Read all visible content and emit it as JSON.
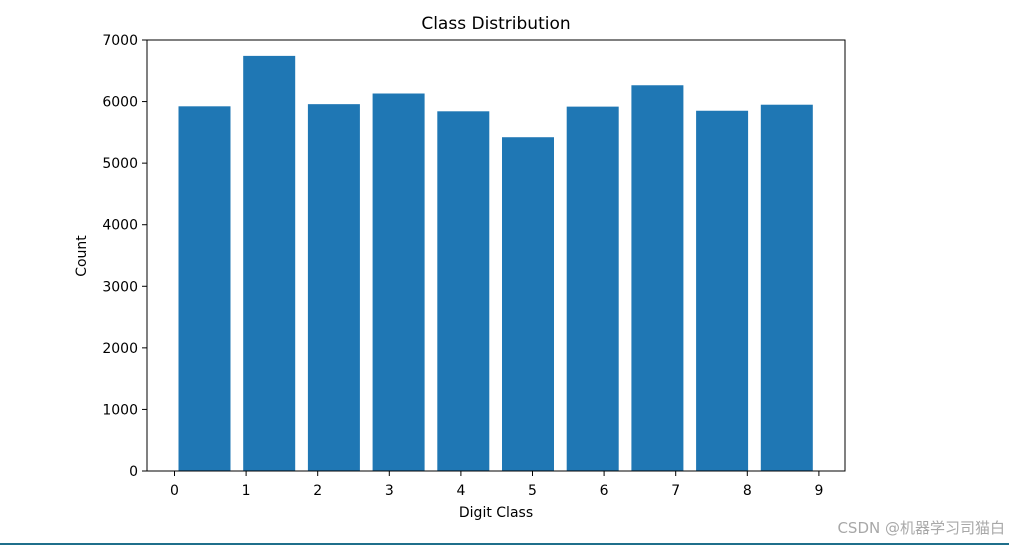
{
  "chart_data": {
    "type": "bar",
    "title": "Class Distribution",
    "xlabel": "Digit Class",
    "ylabel": "Count",
    "categories": [
      "0",
      "1",
      "2",
      "3",
      "4",
      "5",
      "6",
      "7",
      "8",
      "9"
    ],
    "values": [
      5923,
      6742,
      5958,
      6131,
      5842,
      5421,
      5918,
      6265,
      5851,
      5949
    ],
    "ylim": [
      0,
      7000
    ],
    "yticks": [
      0,
      1000,
      2000,
      3000,
      4000,
      5000,
      6000,
      7000
    ],
    "xticks": [
      0,
      1,
      2,
      3,
      4,
      5,
      6,
      7,
      8,
      9
    ],
    "bar_color": "#1f77b4",
    "grid": false,
    "legend": "none"
  },
  "watermark": "CSDN @机器学习司猫白"
}
